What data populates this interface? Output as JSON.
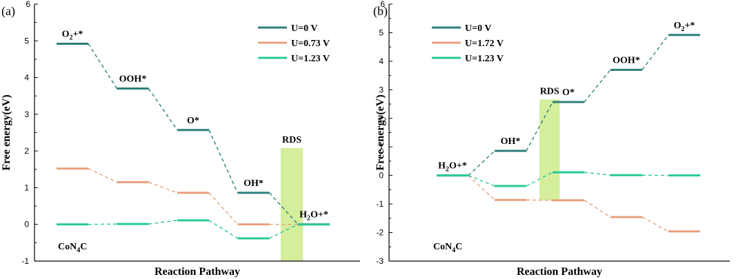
{
  "chart_data": [
    {
      "type": "line",
      "panel_label": "(a)",
      "xlabel": "Reaction Pathway",
      "ylabel": "Free energy(eV)",
      "ylim": [
        -1,
        6
      ],
      "y_ticks": [
        -1,
        0,
        1,
        2,
        3,
        4,
        5,
        6
      ],
      "categories": [
        "O2+*",
        "OOH*",
        "O*",
        "OH*",
        "H2O+*"
      ],
      "state_labels": [
        {
          "text": "O",
          "sub": "2",
          "rest": "+*",
          "x": 0,
          "y": 4.92
        },
        {
          "text": "OOH*",
          "x": 1,
          "y": 3.7
        },
        {
          "text": "O*",
          "x": 2,
          "y": 2.57
        },
        {
          "text": "OH*",
          "x": 3,
          "y": 0.86
        },
        {
          "text": "H",
          "sub": "2",
          "rest": "O+*",
          "x": 4,
          "y": 0
        }
      ],
      "material": {
        "text": "CoN",
        "sub": "4",
        "rest": "C"
      },
      "rds": {
        "label": "RDS",
        "x_from": 3.45,
        "x_to": 3.82,
        "y_top": 2.08,
        "y_bottom": -1
      },
      "series": [
        {
          "name": "U=0 V",
          "color": "#2e7d7c",
          "values": [
            4.92,
            3.7,
            2.57,
            0.86,
            0
          ]
        },
        {
          "name": "U=0.73 V",
          "color": "#e8a07e",
          "values": [
            1.52,
            1.15,
            0.86,
            0,
            0
          ]
        },
        {
          "name": "U=1.23 V",
          "color": "#27c99a",
          "values": [
            0,
            0.01,
            0.11,
            -0.38,
            0
          ]
        }
      ]
    },
    {
      "type": "line",
      "panel_label": "(b)",
      "xlabel": "Reaction Pathway",
      "ylabel": "Free energy(eV)",
      "ylim": [
        -3,
        6
      ],
      "y_ticks": [
        -3,
        -2,
        -1,
        0,
        1,
        2,
        3,
        4,
        5,
        6
      ],
      "categories": [
        "H2O+*",
        "OH*",
        "O*",
        "OOH*",
        "O2+*"
      ],
      "state_labels": [
        {
          "text": "H",
          "sub": "2",
          "rest": "O+*",
          "x": 0,
          "y": 0
        },
        {
          "text": "OH*",
          "x": 1,
          "y": 0.86
        },
        {
          "text": "O*",
          "x": 2,
          "y": 2.57
        },
        {
          "text": "OOH*",
          "x": 3,
          "y": 3.7
        },
        {
          "text": "O",
          "sub": "2",
          "rest": "+*",
          "x": 4,
          "y": 4.92
        }
      ],
      "material": {
        "text": "CoN",
        "sub": "4",
        "rest": "C"
      },
      "rds": {
        "label": "RDS",
        "x_from": 1.5,
        "x_to": 1.85,
        "y_top": 2.66,
        "y_bottom": -0.87
      },
      "series": [
        {
          "name": "U=0 V",
          "color": "#2e7d7c",
          "values": [
            0,
            0.86,
            2.57,
            3.7,
            4.92
          ]
        },
        {
          "name": "U=1.72 V",
          "color": "#e8a07e",
          "values": [
            0,
            -0.86,
            -0.87,
            -1.46,
            -1.96
          ]
        },
        {
          "name": "U=1.23 V",
          "color": "#27c99a",
          "values": [
            0,
            -0.37,
            0.11,
            0.01,
            0
          ]
        }
      ]
    }
  ]
}
